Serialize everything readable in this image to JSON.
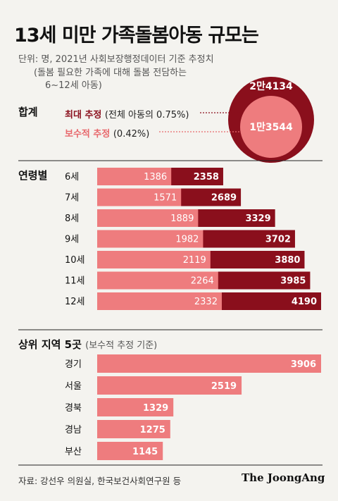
{
  "colors": {
    "dark": "#8a0f1c",
    "light": "#ee7c7e",
    "background": "#f4f3ef"
  },
  "chart_data": {
    "type": "bar",
    "title": "13세 미만 가족돌봄아동 규모는",
    "unit_note": "단위: 명, 2021년 사회보장행정데이터 기준 추정치",
    "unit_note_line2": "(돌봄 필요한 가족에 대해 돌봄 전담하는",
    "unit_note_line3": "6~12세 아동)",
    "total": {
      "section_label": "합계",
      "max_label": "최대 추정",
      "max_note": "(전체 아동의 0.75%)",
      "cons_label": "보수적 추정",
      "cons_note": "(0.42%)",
      "max_value": "2만4134",
      "cons_value": "1만3544"
    },
    "by_age": {
      "section_label": "연령별",
      "categories": [
        "6세",
        "7세",
        "8세",
        "9세",
        "10세",
        "11세",
        "12세"
      ],
      "series": [
        {
          "name": "보수적 추정",
          "values": [
            1386,
            1571,
            1889,
            1982,
            2119,
            2264,
            2332
          ]
        },
        {
          "name": "최대 추정",
          "values": [
            2358,
            2689,
            3329,
            3702,
            3880,
            3985,
            4190
          ]
        }
      ],
      "xlim": [
        0,
        4190
      ]
    },
    "by_region": {
      "section_label": "상위 지역 5곳",
      "section_note": "(보수적 추정 기준)",
      "categories": [
        "경기",
        "서울",
        "경북",
        "경남",
        "부산"
      ],
      "values": [
        3906,
        2519,
        1329,
        1275,
        1145
      ],
      "xlim": [
        0,
        3906
      ]
    },
    "source": "자료: 강선우 의원실, 한국보건사회연구원 등",
    "brand": "The JoongAng"
  }
}
